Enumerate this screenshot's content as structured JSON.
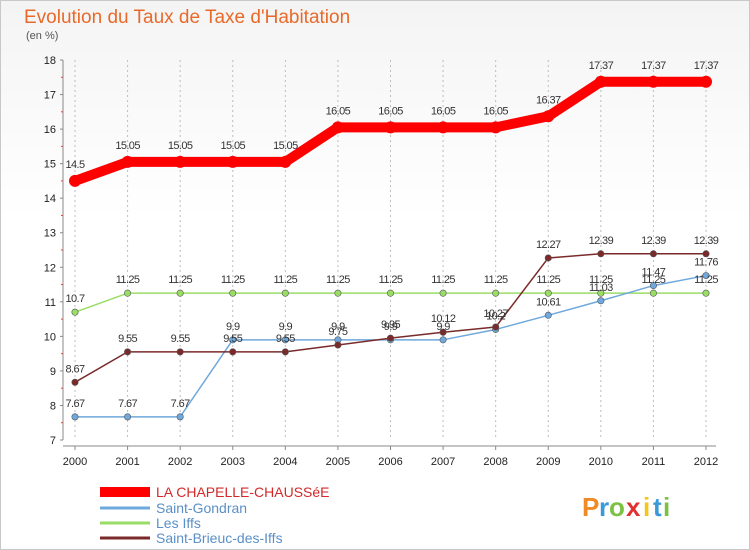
{
  "chart_data": {
    "type": "line",
    "title": "Evolution du Taux de Taxe d'Habitation",
    "subtitle": "(en %)",
    "xlabel": "",
    "ylabel": "",
    "x": [
      "2000",
      "2001",
      "2002",
      "2003",
      "2004",
      "2005",
      "2006",
      "2007",
      "2008",
      "2009",
      "2010",
      "2011",
      "2012"
    ],
    "ylim": [
      7,
      18
    ],
    "yticks": [
      "7",
      "8",
      "9",
      "10",
      "11",
      "12",
      "13",
      "14",
      "15",
      "16",
      "17",
      "18"
    ],
    "grid": "x-dashed",
    "legend_position": "bottom-left",
    "series": [
      {
        "name": "LA CHAPELLE-CHAUSSéE",
        "color": "#ff0000",
        "values": [
          14.5,
          15.05,
          15.05,
          15.05,
          15.05,
          16.05,
          16.05,
          16.05,
          16.05,
          16.37,
          17.37,
          17.37,
          17.37
        ],
        "labels": [
          "14.5",
          "15.05",
          "15.05",
          "15.05",
          "15.05",
          "16.05",
          "16.05",
          "16.05",
          "16.05",
          "16.37",
          "17.37",
          "17.37",
          "17.37"
        ]
      },
      {
        "name": "Saint-Gondran",
        "color": "#6fa8dc",
        "values": [
          7.67,
          7.67,
          7.67,
          9.9,
          9.9,
          9.9,
          9.9,
          9.9,
          10.2,
          10.61,
          11.03,
          11.47,
          11.76
        ],
        "labels": [
          "7.67",
          "7.67",
          "7.67",
          "9.9",
          "9.9",
          "9.9",
          "9.9",
          "9.9",
          "10.2",
          "10.61",
          "11.03",
          "11.47",
          "11.76"
        ]
      },
      {
        "name": "Les Iffs",
        "color": "#99dd66",
        "values": [
          10.7,
          11.25,
          11.25,
          11.25,
          11.25,
          11.25,
          11.25,
          11.25,
          11.25,
          11.25,
          11.25,
          11.25,
          11.25
        ],
        "labels": [
          "10.7",
          "11.25",
          "11.25",
          "11.25",
          "11.25",
          "11.25",
          "11.25",
          "11.25",
          "11.25",
          "11.25",
          "11.25",
          "11.25",
          "11.25"
        ]
      },
      {
        "name": "Saint-Brieuc-des-Iffs",
        "color": "#7a2a2a",
        "values": [
          8.67,
          9.55,
          9.55,
          9.55,
          9.55,
          9.75,
          9.95,
          10.12,
          10.27,
          12.27,
          12.39,
          12.39,
          12.39
        ],
        "labels": [
          "8.67",
          "9.55",
          "9.55",
          "9.55",
          "9.55",
          "9.75",
          "9.95",
          "10.12",
          "10.27",
          "12.27",
          "12.39",
          "12.39",
          "12.39"
        ]
      }
    ]
  },
  "brand": {
    "letters": [
      "P",
      "r",
      "o",
      "x",
      "i",
      "t",
      "i"
    ],
    "colors": [
      "#f08a24",
      "#3a9ad9",
      "#7bc142",
      "#e03030",
      "#f5c518",
      "#3a9ad9",
      "#7bc142"
    ]
  }
}
